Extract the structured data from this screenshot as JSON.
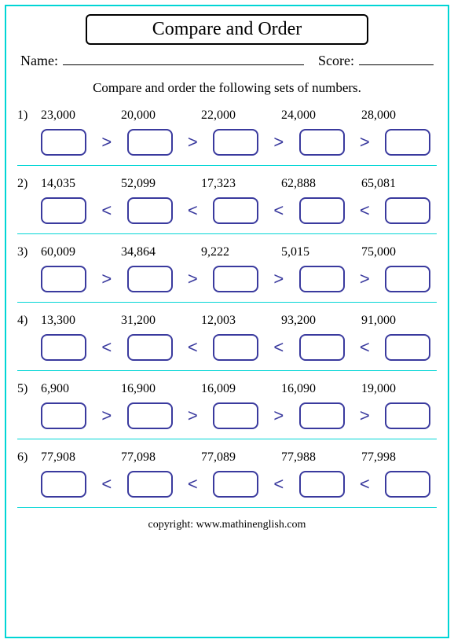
{
  "title": "Compare and Order",
  "name_label": "Name:",
  "score_label": "Score:",
  "instruction": "Compare and order the following sets of numbers.",
  "copyright": "copyright:   www.mathinenglish.com",
  "colors": {
    "border": "#00d5d5",
    "box_border": "#3a3a9e",
    "operator": "#3a3a9e",
    "text": "#000000",
    "background": "#ffffff"
  },
  "box_style": {
    "width": 58,
    "height": 34,
    "border_radius": 8,
    "border_width": 2
  },
  "fonts": {
    "title": 24,
    "body": 17,
    "numbers": 16,
    "operator": 22
  },
  "problems": [
    {
      "n": "1)",
      "numbers": [
        "23,000",
        "20,000",
        "22,000",
        "24,000",
        "28,000"
      ],
      "op": ">"
    },
    {
      "n": "2)",
      "numbers": [
        "14,035",
        "52,099",
        "17,323",
        "62,888",
        "65,081"
      ],
      "op": "<"
    },
    {
      "n": "3)",
      "numbers": [
        "60,009",
        "34,864",
        "9,222",
        "5,015",
        "75,000"
      ],
      "op": ">"
    },
    {
      "n": "4)",
      "numbers": [
        "13,300",
        "31,200",
        "12,003",
        "93,200",
        "91,000"
      ],
      "op": "<"
    },
    {
      "n": "5)",
      "numbers": [
        "6,900",
        "16,900",
        "16,009",
        "16,090",
        "19,000"
      ],
      "op": ">"
    },
    {
      "n": "6)",
      "numbers": [
        "77,908",
        "77,098",
        "77,089",
        "77,988",
        "77,998"
      ],
      "op": "<"
    }
  ]
}
